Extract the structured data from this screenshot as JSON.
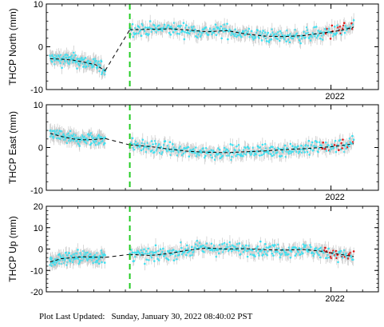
{
  "chart_data": [
    {
      "type": "scatter",
      "ylabel": "THCP North (mm)",
      "ylim": [
        -10,
        10
      ],
      "yticks": [
        -10,
        0,
        10
      ],
      "xlim": [
        2020.5,
        2022.25
      ],
      "xtick_label": "2022",
      "xtick_value": 2022.0,
      "event_line_x": 2020.94,
      "segments": [
        {
          "x": [
            2020.52,
            2020.58,
            2020.64,
            2020.7,
            2020.76,
            2020.81
          ],
          "y": [
            -2.8,
            -2.9,
            -3.1,
            -3.6,
            -4.2,
            -5.6
          ]
        },
        {
          "x": [
            2020.94,
            2021.05,
            2021.15,
            2021.25,
            2021.35,
            2021.45,
            2021.55,
            2021.65,
            2021.75,
            2021.85,
            2021.95,
            2022.05,
            2022.12
          ],
          "y": [
            4.0,
            4.1,
            4.2,
            3.9,
            3.5,
            3.8,
            3.0,
            2.5,
            2.4,
            2.6,
            3.2,
            3.8,
            4.6
          ]
        }
      ],
      "gap_line": {
        "x": [
          2020.81,
          2020.94
        ],
        "y": [
          -5.6,
          4.0
        ]
      }
    },
    {
      "type": "scatter",
      "ylabel": "THCP East (mm)",
      "ylim": [
        -10,
        10
      ],
      "yticks": [
        -10,
        0,
        10
      ],
      "xlim": [
        2020.5,
        2022.25
      ],
      "xtick_label": "2022",
      "xtick_value": 2022.0,
      "event_line_x": 2020.94,
      "segments": [
        {
          "x": [
            2020.52,
            2020.58,
            2020.64,
            2020.7,
            2020.76,
            2020.81
          ],
          "y": [
            3.3,
            2.6,
            2.0,
            1.8,
            1.9,
            2.1
          ]
        },
        {
          "x": [
            2020.94,
            2021.05,
            2021.15,
            2021.25,
            2021.35,
            2021.45,
            2021.55,
            2021.65,
            2021.75,
            2021.85,
            2021.95,
            2022.05,
            2022.12
          ],
          "y": [
            0.6,
            0.2,
            -0.4,
            -0.9,
            -1.1,
            -1.2,
            -1.0,
            -0.8,
            -0.5,
            -0.3,
            0.0,
            0.4,
            0.9
          ]
        }
      ],
      "gap_line": {
        "x": [
          2020.81,
          2020.94
        ],
        "y": [
          2.1,
          0.6
        ]
      }
    },
    {
      "type": "scatter",
      "ylabel": "THCP Up (mm)",
      "ylim": [
        -20,
        20
      ],
      "yticks": [
        -20,
        -10,
        0,
        10,
        20
      ],
      "xlim": [
        2020.5,
        2022.25
      ],
      "xtick_label": "2022",
      "xtick_value": 2022.0,
      "event_line_x": 2020.94,
      "segments": [
        {
          "x": [
            2020.52,
            2020.58,
            2020.64,
            2020.7,
            2020.76,
            2020.81
          ],
          "y": [
            -6.0,
            -4.5,
            -4.0,
            -3.6,
            -3.8,
            -3.9
          ]
        },
        {
          "x": [
            2020.94,
            2021.05,
            2021.15,
            2021.25,
            2021.35,
            2021.45,
            2021.55,
            2021.65,
            2021.75,
            2021.85,
            2021.95,
            2022.05,
            2022.12
          ],
          "y": [
            -2.5,
            -3.0,
            -2.0,
            -0.5,
            0.5,
            0.0,
            0.2,
            -0.3,
            -0.5,
            -0.2,
            -1.0,
            -2.5,
            -3.5
          ]
        }
      ],
      "gap_line": {
        "x": [
          2020.81,
          2020.94
        ],
        "y": [
          -3.9,
          -2.5
        ]
      }
    }
  ],
  "footer": {
    "label": "Plot Last Updated:",
    "timestamp": "Sunday, January 30, 2022 08:40:02 PST"
  },
  "colors": {
    "marker": "#3ee0f0",
    "marker_recent": "#e01818",
    "error_bar": "#c8c8c8",
    "event_line": "#22cc22",
    "model_line": "#000000"
  }
}
